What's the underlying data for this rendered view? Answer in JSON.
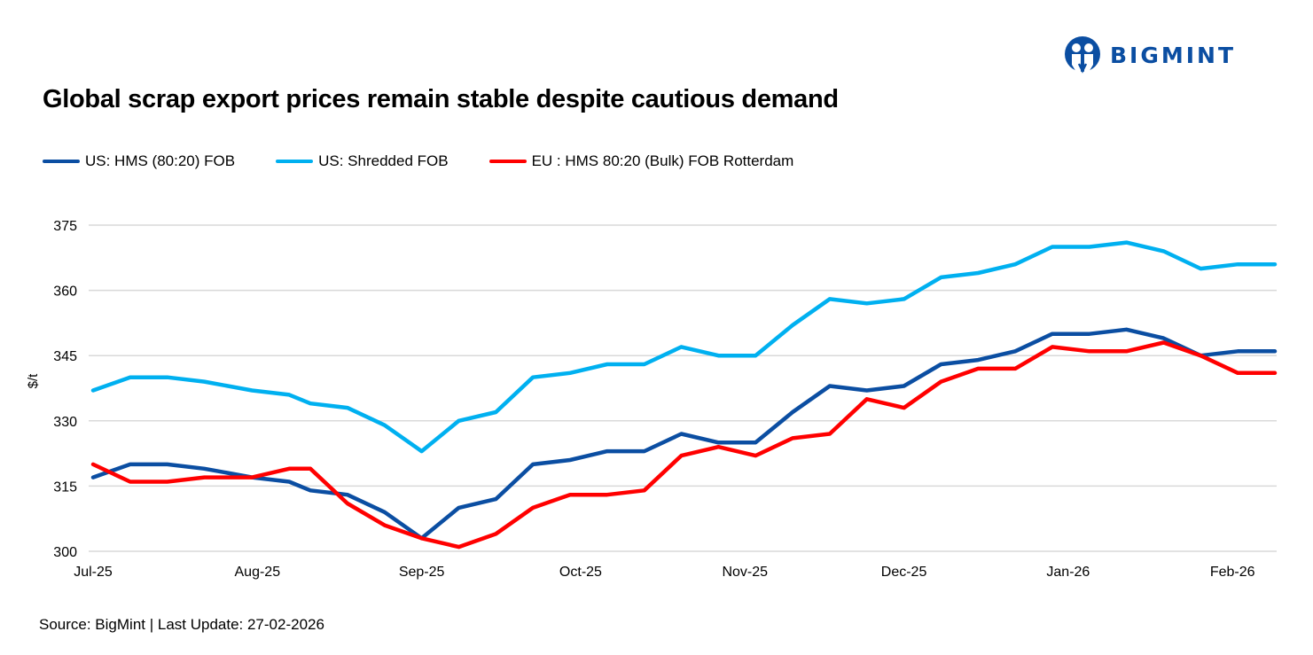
{
  "brand": {
    "name": "BIGMINT",
    "color": "#0b4ea2"
  },
  "title": "Global scrap export prices remain stable despite cautious demand",
  "source": "Source: BigMint | Last Update: 27-02-2026",
  "chart_data": {
    "type": "line",
    "title": "Global scrap export prices remain stable despite cautious demand",
    "ylabel": "$/t",
    "xlabel": "",
    "ylim": [
      300,
      375
    ],
    "yticks": [
      300,
      315,
      330,
      345,
      360,
      375
    ],
    "xlim": [
      "2025-07-01",
      "2026-02-09"
    ],
    "xticks": [
      {
        "date": "2025-07-01",
        "label": "Jul-25"
      },
      {
        "date": "2025-08-01",
        "label": "Aug-25"
      },
      {
        "date": "2025-09-01",
        "label": "Sep-25"
      },
      {
        "date": "2025-10-01",
        "label": "Oct-25"
      },
      {
        "date": "2025-11-01",
        "label": "Nov-25"
      },
      {
        "date": "2025-12-01",
        "label": "Dec-25"
      },
      {
        "date": "2026-01-01",
        "label": "Jan-26"
      },
      {
        "date": "2026-02-01",
        "label": "Feb-26"
      }
    ],
    "grid": "horizontal",
    "legend": "top-left",
    "x": [
      "2025-07-01",
      "2025-07-08",
      "2025-07-15",
      "2025-07-22",
      "2025-07-31",
      "2025-08-07",
      "2025-08-11",
      "2025-08-18",
      "2025-08-25",
      "2025-09-01",
      "2025-09-08",
      "2025-09-15",
      "2025-09-22",
      "2025-09-29",
      "2025-10-06",
      "2025-10-13",
      "2025-10-20",
      "2025-10-27",
      "2025-11-03",
      "2025-11-10",
      "2025-11-17",
      "2025-11-24",
      "2025-12-01",
      "2025-12-08",
      "2025-12-15",
      "2025-12-22",
      "2025-12-29",
      "2026-01-05",
      "2026-01-12",
      "2026-01-19",
      "2026-01-26",
      "2026-02-02",
      "2026-02-09"
    ],
    "series": [
      {
        "name": "US: HMS (80:20) FOB",
        "color": "#0b4ea2",
        "values": [
          317,
          320,
          320,
          319,
          317,
          316,
          314,
          313,
          309,
          303,
          310,
          312,
          320,
          321,
          323,
          323,
          327,
          325,
          325,
          332,
          338,
          337,
          338,
          343,
          344,
          346,
          350,
          350,
          351,
          349,
          345,
          346,
          346
        ]
      },
      {
        "name": "US: Shredded FOB",
        "color": "#00b0f0",
        "values": [
          337,
          340,
          340,
          339,
          337,
          336,
          334,
          333,
          329,
          323,
          330,
          332,
          340,
          341,
          343,
          343,
          347,
          345,
          345,
          352,
          358,
          357,
          358,
          363,
          364,
          366,
          370,
          370,
          371,
          369,
          365,
          366,
          366
        ]
      },
      {
        "name": "EU : HMS 80:20 (Bulk) FOB Rotterdam",
        "color": "#ff0000",
        "values": [
          320,
          316,
          316,
          317,
          317,
          319,
          319,
          311,
          306,
          303,
          301,
          304,
          310,
          313,
          313,
          314,
          322,
          324,
          322,
          326,
          327,
          335,
          333,
          339,
          342,
          342,
          347,
          346,
          346,
          348,
          345,
          341,
          341
        ]
      }
    ]
  }
}
